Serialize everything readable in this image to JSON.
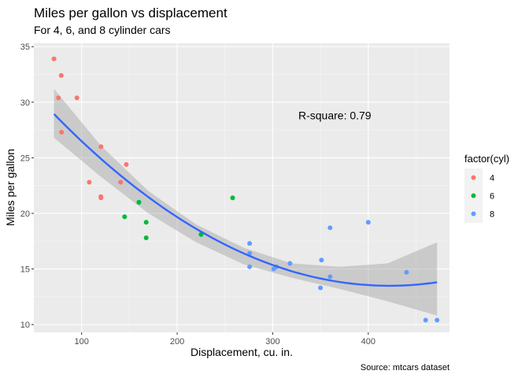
{
  "chart_data": {
    "type": "scatter",
    "title": "Miles per gallon vs displacement",
    "subtitle": "For 4, 6, and 8 cylinder cars",
    "xlabel": "Displacement, cu. in.",
    "ylabel": "Miles per gallon",
    "caption": "Source: mtcars dataset",
    "annotation": {
      "text": "R-square: 0.79",
      "x": 365,
      "y": 28.8
    },
    "xlim": [
      50,
      485
    ],
    "ylim": [
      9.3,
      35.3
    ],
    "xticks": [
      100,
      200,
      300,
      400
    ],
    "yticks": [
      10,
      15,
      20,
      25,
      30,
      35
    ],
    "grid": true,
    "legend": {
      "title": "factor(cyl)",
      "position": "right"
    },
    "series": [
      {
        "name": "4",
        "color": "#F8766D",
        "points": [
          [
            71.1,
            33.9
          ],
          [
            75.7,
            30.4
          ],
          [
            78.7,
            32.4
          ],
          [
            79.0,
            27.3
          ],
          [
            95.1,
            30.4
          ],
          [
            108.0,
            22.8
          ],
          [
            120.1,
            21.5
          ],
          [
            120.3,
            21.4
          ],
          [
            120.3,
            26.0
          ],
          [
            140.8,
            22.8
          ],
          [
            146.7,
            24.4
          ]
        ]
      },
      {
        "name": "6",
        "color": "#00BA38",
        "points": [
          [
            145.0,
            19.7
          ],
          [
            160.0,
            21.0
          ],
          [
            160.0,
            21.0
          ],
          [
            167.6,
            19.2
          ],
          [
            167.6,
            17.8
          ],
          [
            225.0,
            18.1
          ],
          [
            258.0,
            21.4
          ]
        ]
      },
      {
        "name": "8",
        "color": "#619CFF",
        "points": [
          [
            275.8,
            17.3
          ],
          [
            275.8,
            16.4
          ],
          [
            275.8,
            15.2
          ],
          [
            301.0,
            15.0
          ],
          [
            304.0,
            15.2
          ],
          [
            318.0,
            15.5
          ],
          [
            350.0,
            13.3
          ],
          [
            351.0,
            15.8
          ],
          [
            360.0,
            18.7
          ],
          [
            360.0,
            14.3
          ],
          [
            400.0,
            19.2
          ],
          [
            440.0,
            14.7
          ],
          [
            460.0,
            10.4
          ],
          [
            472.0,
            10.4
          ]
        ]
      }
    ],
    "smooth": {
      "color": "#3366FF",
      "method": "quadratic",
      "coefficients": [
        35.83,
        -0.1059,
        0.0001255
      ],
      "x_range": [
        71.1,
        472.0
      ],
      "band": [
        [
          71.1,
          26.8,
          31.2
        ],
        [
          120,
          23.3,
          26.1
        ],
        [
          170,
          20.0,
          22.0
        ],
        [
          220,
          17.4,
          19.0
        ],
        [
          270,
          15.4,
          16.9
        ],
        [
          320,
          14.2,
          15.5
        ],
        [
          370,
          13.2,
          15.2
        ],
        [
          420,
          12.1,
          15.5
        ],
        [
          472,
          10.8,
          17.4
        ]
      ]
    }
  }
}
